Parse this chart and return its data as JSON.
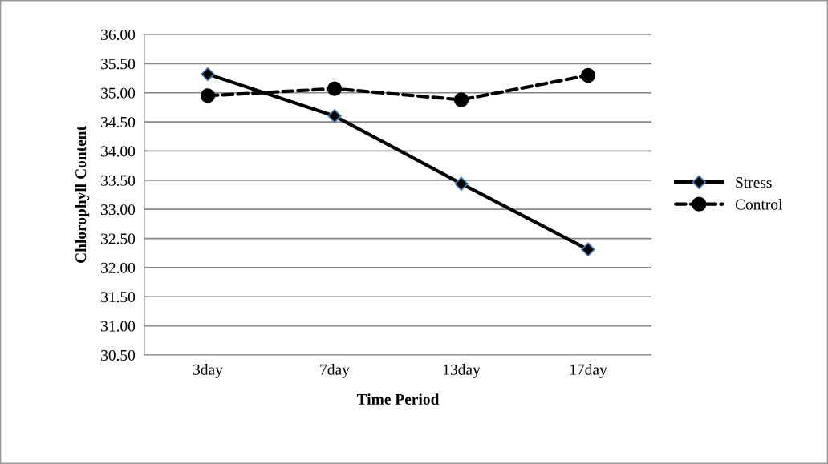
{
  "chart_data": {
    "type": "line",
    "xlabel": "Time Period",
    "ylabel": "Chlorophyll Content",
    "categories": [
      "3day",
      "7day",
      "13day",
      "17day"
    ],
    "series": [
      {
        "name": "Stress",
        "color": "#000000",
        "marker": "diamond",
        "line_style": "solid",
        "values": [
          35.32,
          34.6,
          33.44,
          32.31
        ]
      },
      {
        "name": "Control",
        "color": "#000000",
        "marker": "circle",
        "line_style": "dashed",
        "values": [
          34.95,
          35.07,
          34.88,
          35.3
        ]
      }
    ],
    "ylim": [
      30.5,
      36
    ],
    "yticks": [
      {
        "value": 30.5,
        "label": "30.50"
      },
      {
        "value": 31,
        "label": "31.00"
      },
      {
        "value": 31.5,
        "label": "31.50"
      },
      {
        "value": 32,
        "label": "32.00"
      },
      {
        "value": 32.5,
        "label": "32.50"
      },
      {
        "value": 33,
        "label": "33.00"
      },
      {
        "value": 33.5,
        "label": "33.50"
      },
      {
        "value": 34,
        "label": "34.00"
      },
      {
        "value": 34.5,
        "label": "34.50"
      },
      {
        "value": 35,
        "label": "35.00"
      },
      {
        "value": 35.5,
        "label": "35.50"
      },
      {
        "value": 36,
        "label": "36.00"
      }
    ],
    "grid": "y",
    "legend": "right"
  }
}
